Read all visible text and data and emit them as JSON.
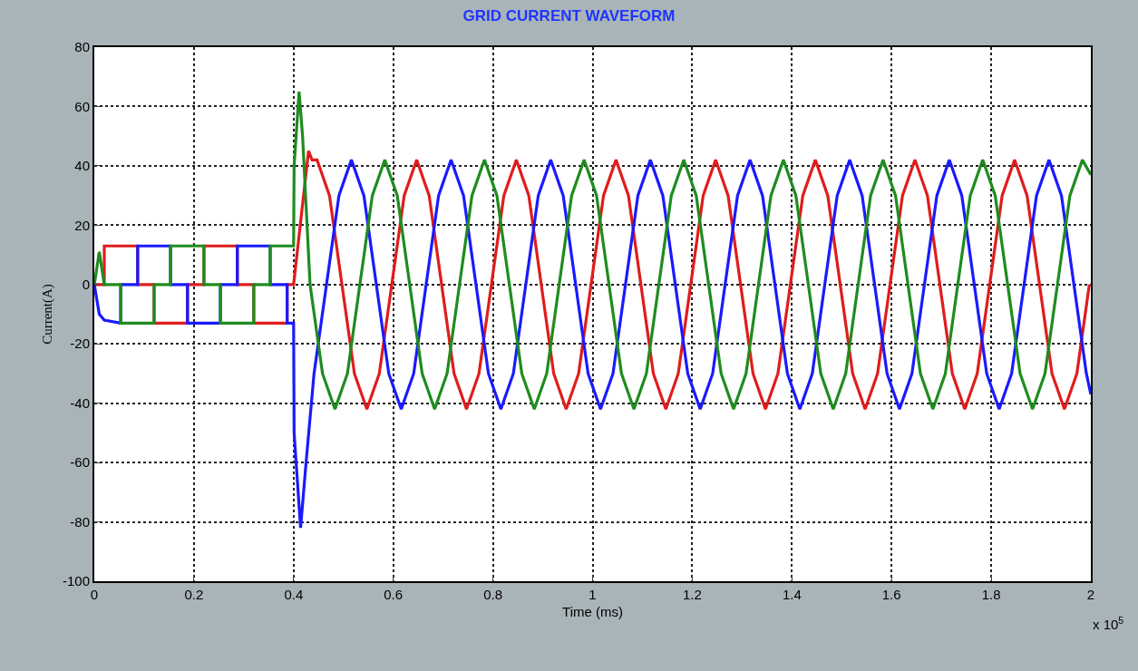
{
  "chart_data": {
    "type": "line",
    "title": "GRID CURRENT WAVEFORM",
    "xlabel": "Time (ms)",
    "ylabel": "Current(A)",
    "annotations": [
      "x 10$^{5}$"
    ],
    "xlim": [
      0,
      2
    ],
    "xticks": [
      0,
      0.2,
      0.4,
      0.6,
      0.8,
      1,
      1.2,
      1.4,
      1.6,
      1.8,
      2
    ],
    "ylim": [
      -100,
      80
    ],
    "yticks": [
      -100,
      -80,
      -60,
      -40,
      -20,
      0,
      20,
      40,
      60,
      80
    ],
    "grid": true,
    "marker": "none",
    "line_style": "solid",
    "series": [
      {
        "color": "#e01c1c",
        "x": [
          0,
          0.02,
          0.02,
          0.087,
          0.087,
          0.12,
          0.12,
          0.187,
          0.187,
          0.22,
          0.22,
          0.287,
          0.287,
          0.32,
          0.32,
          0.387,
          0.387,
          0.4,
          0.43,
          0.437,
          0.447,
          0.472,
          0.497,
          0.522,
          0.547,
          0.572,
          0.597,
          0.622,
          0.647,
          0.672,
          0.697,
          0.722,
          0.747,
          0.772,
          0.797,
          0.822,
          0.847,
          0.872,
          0.897,
          0.922,
          0.947,
          0.972,
          0.997,
          1.022,
          1.047,
          1.072,
          1.097,
          1.122,
          1.147,
          1.172,
          1.197,
          1.222,
          1.247,
          1.272,
          1.297,
          1.322,
          1.347,
          1.372,
          1.397,
          1.422,
          1.447,
          1.472,
          1.497,
          1.522,
          1.547,
          1.572,
          1.597,
          1.622,
          1.647,
          1.672,
          1.697,
          1.722,
          1.747,
          1.772,
          1.797,
          1.822,
          1.847,
          1.872,
          1.897,
          1.922,
          1.947,
          1.972,
          1.997
        ],
        "values": [
          0,
          0,
          13,
          13,
          0,
          0,
          -13,
          -13,
          0,
          0,
          13,
          13,
          0,
          0,
          -13,
          -13,
          0,
          0,
          45,
          42,
          42,
          30,
          0,
          -30,
          -42,
          -30,
          0,
          30,
          42,
          30,
          0,
          -30,
          -42,
          -30,
          0,
          30,
          42,
          30,
          0,
          -30,
          -42,
          -30,
          0,
          30,
          42,
          30,
          0,
          -30,
          -42,
          -30,
          0,
          30,
          42,
          30,
          0,
          -30,
          -42,
          -30,
          0,
          30,
          42,
          30,
          0,
          -30,
          -42,
          -30,
          0,
          30,
          42,
          30,
          0,
          -30,
          -42,
          -30,
          0,
          30,
          42,
          30,
          0,
          -30,
          -42,
          -30,
          0
        ]
      },
      {
        "color": "#1a1aff",
        "x": [
          0,
          0.01,
          0.02,
          0.053,
          0.053,
          0.087,
          0.087,
          0.153,
          0.153,
          0.187,
          0.187,
          0.253,
          0.253,
          0.287,
          0.287,
          0.353,
          0.353,
          0.387,
          0.387,
          0.4,
          0.401,
          0.414,
          0.425,
          0.441,
          0.466,
          0.491,
          0.516,
          0.541,
          0.566,
          0.591,
          0.616,
          0.641,
          0.666,
          0.691,
          0.716,
          0.741,
          0.766,
          0.791,
          0.816,
          0.841,
          0.866,
          0.891,
          0.916,
          0.941,
          0.966,
          0.991,
          1.016,
          1.041,
          1.066,
          1.091,
          1.116,
          1.141,
          1.166,
          1.191,
          1.216,
          1.241,
          1.266,
          1.291,
          1.316,
          1.341,
          1.366,
          1.391,
          1.416,
          1.441,
          1.466,
          1.491,
          1.516,
          1.541,
          1.566,
          1.591,
          1.616,
          1.641,
          1.666,
          1.691,
          1.716,
          1.741,
          1.766,
          1.791,
          1.816,
          1.841,
          1.866,
          1.891,
          1.916,
          1.941,
          1.966,
          1.991,
          2.0
        ],
        "values": [
          0,
          -10,
          -12,
          -13,
          0,
          0,
          13,
          13,
          0,
          0,
          -13,
          -13,
          0,
          0,
          13,
          13,
          0,
          0,
          -13,
          -13,
          -50,
          -82,
          -60,
          -30,
          0,
          30,
          42,
          30,
          0,
          -30,
          -42,
          -30,
          0,
          30,
          42,
          30,
          0,
          -30,
          -42,
          -30,
          0,
          30,
          42,
          30,
          0,
          -30,
          -42,
          -30,
          0,
          30,
          42,
          30,
          0,
          -30,
          -42,
          -30,
          0,
          30,
          42,
          30,
          0,
          -30,
          -42,
          -30,
          0,
          30,
          42,
          30,
          0,
          -30,
          -42,
          -30,
          0,
          30,
          42,
          30,
          0,
          -30,
          -42,
          -30,
          0,
          30,
          42,
          30,
          0,
          -30,
          -37
        ]
      },
      {
        "color": "#1e8c1e",
        "x": [
          0,
          0.01,
          0.02,
          0.053,
          0.053,
          0.12,
          0.12,
          0.153,
          0.153,
          0.22,
          0.22,
          0.253,
          0.253,
          0.32,
          0.32,
          0.353,
          0.353,
          0.4,
          0.401,
          0.411,
          0.418,
          0.433,
          0.458,
          0.483,
          0.508,
          0.533,
          0.558,
          0.583,
          0.608,
          0.633,
          0.658,
          0.683,
          0.708,
          0.733,
          0.758,
          0.783,
          0.808,
          0.833,
          0.858,
          0.883,
          0.908,
          0.933,
          0.958,
          0.983,
          1.008,
          1.033,
          1.058,
          1.083,
          1.108,
          1.133,
          1.158,
          1.183,
          1.208,
          1.233,
          1.258,
          1.283,
          1.308,
          1.333,
          1.358,
          1.383,
          1.408,
          1.433,
          1.458,
          1.483,
          1.508,
          1.533,
          1.558,
          1.583,
          1.608,
          1.633,
          1.658,
          1.683,
          1.708,
          1.733,
          1.758,
          1.783,
          1.808,
          1.833,
          1.858,
          1.883,
          1.908,
          1.933,
          1.958,
          1.983,
          2.0
        ],
        "values": [
          0,
          11,
          0,
          0,
          -13,
          -13,
          0,
          0,
          13,
          13,
          0,
          0,
          -13,
          -13,
          0,
          0,
          13,
          13,
          40,
          65,
          50,
          0,
          -30,
          -42,
          -30,
          0,
          30,
          42,
          30,
          0,
          -30,
          -42,
          -30,
          0,
          30,
          42,
          30,
          0,
          -30,
          -42,
          -30,
          0,
          30,
          42,
          30,
          0,
          -30,
          -42,
          -30,
          0,
          30,
          42,
          30,
          0,
          -30,
          -42,
          -30,
          0,
          30,
          42,
          30,
          0,
          -30,
          -42,
          -30,
          0,
          30,
          42,
          30,
          0,
          -30,
          -42,
          -30,
          0,
          30,
          42,
          30,
          0,
          -30,
          -42,
          -30,
          0,
          30,
          42,
          37
        ]
      }
    ]
  }
}
